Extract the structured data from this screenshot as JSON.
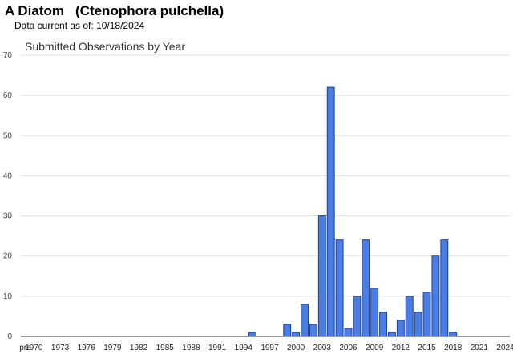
{
  "header": {
    "common_name": "A Diatom",
    "scientific_name": "(Ctenophora pulchella)",
    "date_prefix": "Data current as of:",
    "date_value": "10/18/2024"
  },
  "chart_data": {
    "type": "bar",
    "title": "Submitted Observations by Year",
    "xlabel": "",
    "ylabel": "",
    "ylim": [
      0,
      70
    ],
    "yticks": [
      0,
      10,
      20,
      30,
      40,
      50,
      60,
      70
    ],
    "grid": true,
    "bar_color": "#4a7ee6",
    "bar_stroke": "#1f3f8f",
    "categories": [
      "pre",
      "1970",
      "1971",
      "1972",
      "1973",
      "1974",
      "1975",
      "1976",
      "1977",
      "1978",
      "1979",
      "1980",
      "1981",
      "1982",
      "1983",
      "1984",
      "1985",
      "1986",
      "1987",
      "1988",
      "1989",
      "1990",
      "1991",
      "1992",
      "1993",
      "1994",
      "1995",
      "1996",
      "1997",
      "1998",
      "1999",
      "2000",
      "2001",
      "2002",
      "2003",
      "2004",
      "2005",
      "2006",
      "2007",
      "2008",
      "2009",
      "2010",
      "2011",
      "2012",
      "2013",
      "2014",
      "2015",
      "2016",
      "2017",
      "2018",
      "2019",
      "2020",
      "2021",
      "2022",
      "2023",
      "2024"
    ],
    "tick_labels": [
      "pre",
      "1970",
      "",
      "",
      "1973",
      "",
      "",
      "1976",
      "",
      "",
      "1979",
      "",
      "",
      "1982",
      "",
      "",
      "1985",
      "",
      "",
      "1988",
      "",
      "",
      "1991",
      "",
      "",
      "1994",
      "",
      "",
      "1997",
      "",
      "",
      "2000",
      "",
      "",
      "2003",
      "",
      "",
      "2006",
      "",
      "",
      "2009",
      "",
      "",
      "2012",
      "",
      "",
      "2015",
      "",
      "",
      "2018",
      "",
      "",
      "2021",
      "",
      "",
      "2024"
    ],
    "values": [
      0,
      0,
      0,
      0,
      0,
      0,
      0,
      0,
      0,
      0,
      0,
      0,
      0,
      0,
      0,
      0,
      0,
      0,
      0,
      0,
      0,
      0,
      0,
      0,
      0,
      0,
      1,
      0,
      0,
      0,
      3,
      1,
      8,
      3,
      30,
      62,
      24,
      2,
      10,
      24,
      12,
      6,
      1,
      4,
      10,
      6,
      11,
      20,
      24,
      1,
      0,
      0,
      0,
      0,
      0,
      0
    ]
  }
}
